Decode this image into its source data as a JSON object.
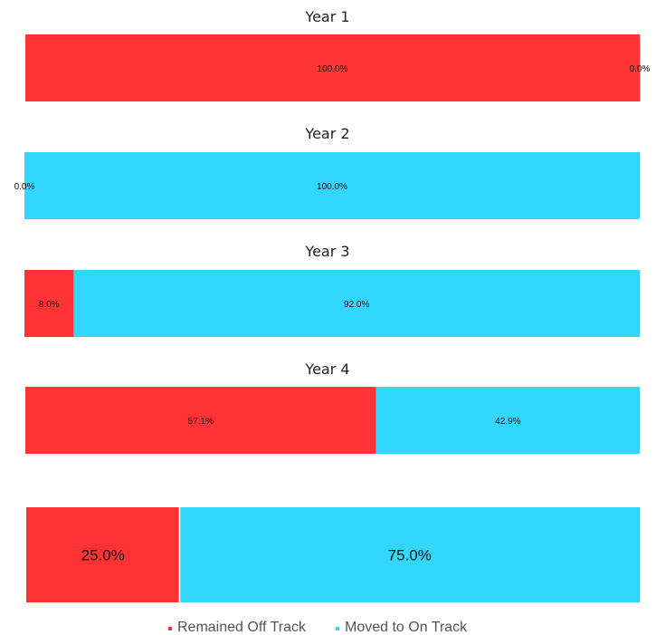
{
  "chart_data": {
    "type": "bar",
    "orientation": "horizontal-stacked-100",
    "series_names": [
      "Remained Off Track",
      "Moved to On Track"
    ],
    "colors": {
      "Remained Off Track": "#ff3333",
      "Moved to On Track": "#33d6ff"
    },
    "panels": [
      {
        "title": "Year 1",
        "values": [
          100.0,
          0.0
        ],
        "labels": [
          "100.0%",
          "0.0%"
        ]
      },
      {
        "title": "Year 2",
        "values": [
          0.0,
          100.0
        ],
        "labels": [
          "0.0%",
          "100.0%"
        ]
      },
      {
        "title": "Year 3",
        "values": [
          8.0,
          92.0
        ],
        "labels": [
          "8.0%",
          "92.0%"
        ]
      },
      {
        "title": "Year 4",
        "values": [
          57.1,
          42.9
        ],
        "labels": [
          "57.1%",
          "42.9%"
        ]
      },
      {
        "title": "",
        "values": [
          25.0,
          75.0
        ],
        "labels": [
          "25.0%",
          "75.0%"
        ]
      }
    ],
    "legend": {
      "position": "bottom-center",
      "entries": [
        "Remained Off Track",
        "Moved to On Track"
      ]
    }
  }
}
